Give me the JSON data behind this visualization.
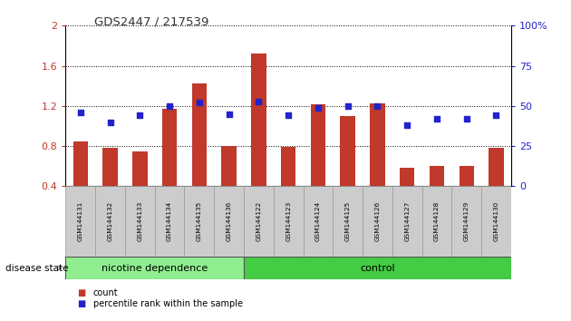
{
  "title": "GDS2447 / 217539",
  "samples": [
    "GSM144131",
    "GSM144132",
    "GSM144133",
    "GSM144134",
    "GSM144135",
    "GSM144136",
    "GSM144122",
    "GSM144123",
    "GSM144124",
    "GSM144125",
    "GSM144126",
    "GSM144127",
    "GSM144128",
    "GSM144129",
    "GSM144130"
  ],
  "count_values": [
    0.85,
    0.78,
    0.75,
    1.17,
    1.42,
    0.8,
    1.72,
    0.79,
    1.22,
    1.1,
    1.23,
    0.58,
    0.6,
    0.6,
    0.78
  ],
  "percentile_values": [
    46,
    40,
    44,
    50,
    52,
    45,
    53,
    44,
    49,
    50,
    50,
    38,
    42,
    42,
    44
  ],
  "count_color": "#c0392b",
  "percentile_color": "#2222cc",
  "ylim_left": [
    0.4,
    2.0
  ],
  "ylim_right": [
    0,
    100
  ],
  "yticks_left": [
    0.4,
    0.8,
    1.2,
    1.6,
    2.0
  ],
  "yticks_right": [
    0,
    25,
    50,
    75,
    100
  ],
  "ytick_labels_left": [
    "0.4",
    "0.8",
    "1.2",
    "1.6",
    "2"
  ],
  "ytick_labels_right": [
    "0",
    "25",
    "50",
    "75",
    "100%"
  ],
  "group1_label": "nicotine dependence",
  "group2_label": "control",
  "group1_count": 6,
  "group2_count": 9,
  "group1_color": "#90ee90",
  "group2_color": "#44cc44",
  "disease_state_label": "disease state",
  "legend_count": "count",
  "legend_percentile": "percentile rank within the sample",
  "bar_width": 0.5,
  "background_color": "#ffffff",
  "sample_box_color": "#cccccc",
  "sample_box_edge": "#999999"
}
